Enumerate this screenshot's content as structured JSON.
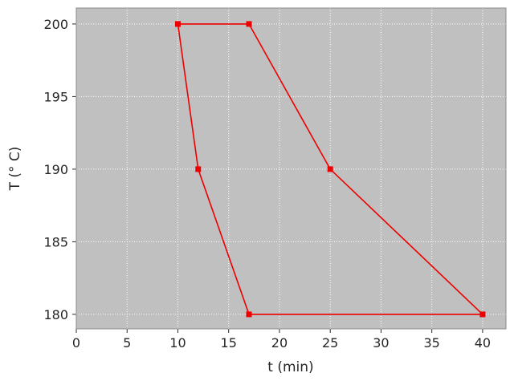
{
  "chart_data": {
    "type": "line",
    "title": "",
    "xlabel": "t (min)",
    "ylabel": "T (° C)",
    "x": [
      10,
      17,
      25,
      40,
      17,
      12,
      10
    ],
    "y": [
      200,
      200,
      190,
      180,
      180,
      190,
      200
    ],
    "xticks": [
      0,
      5,
      10,
      15,
      20,
      25,
      30,
      35,
      40
    ],
    "yticks": [
      180,
      185,
      190,
      195,
      200
    ],
    "xlim": [
      0,
      42.3
    ],
    "ylim": [
      179.0,
      201.1
    ],
    "grid": true,
    "legend_position": "none",
    "line_color": "#ee0000",
    "marker": "square",
    "marker_color": "#ee0000",
    "plot_bg": "#c0c0c0",
    "grid_color": "#ffffff",
    "frame_color": "#8a8a8a",
    "tick_color": "#262626"
  }
}
